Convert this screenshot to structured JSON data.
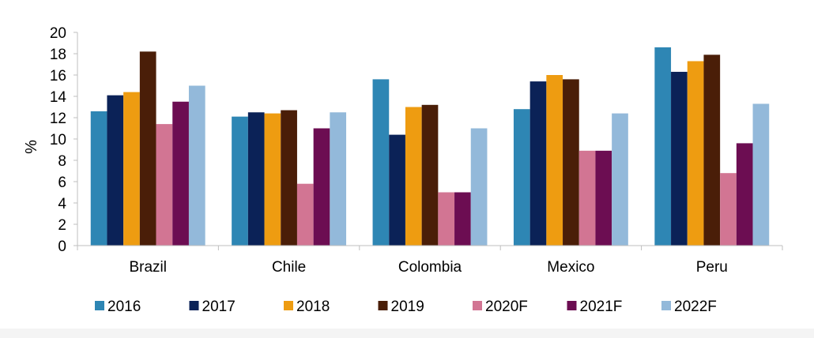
{
  "chart_data": {
    "type": "bar",
    "title": "",
    "xlabel": "",
    "ylabel": "%",
    "ylim": [
      0,
      20
    ],
    "yticks": [
      "0",
      "2",
      "4",
      "6",
      "8",
      "10",
      "12",
      "14",
      "16",
      "18",
      "20"
    ],
    "grid": false,
    "legend_position": "bottom",
    "categories": [
      "Brazil",
      "Chile",
      "Colombia",
      "Mexico",
      "Peru"
    ],
    "series": [
      {
        "name": "2016",
        "color": "#2e86b4",
        "values": [
          12.6,
          12.1,
          15.6,
          12.8,
          18.6
        ]
      },
      {
        "name": "2017",
        "color": "#0b2257",
        "values": [
          14.1,
          12.5,
          10.4,
          15.4,
          16.3
        ]
      },
      {
        "name": "2018",
        "color": "#ee9c11",
        "values": [
          14.4,
          12.4,
          13.0,
          16.0,
          17.3
        ]
      },
      {
        "name": "2019",
        "color": "#4a1e08",
        "values": [
          18.2,
          12.7,
          13.2,
          15.6,
          17.9
        ]
      },
      {
        "name": "2020F",
        "color": "#d27593",
        "values": [
          11.4,
          5.8,
          5.0,
          8.9,
          6.8
        ]
      },
      {
        "name": "2021F",
        "color": "#6c0d52",
        "values": [
          13.5,
          11.0,
          5.0,
          8.9,
          9.6
        ]
      },
      {
        "name": "2022F",
        "color": "#93b9da",
        "values": [
          15.0,
          12.5,
          11.0,
          12.4,
          13.3
        ]
      }
    ]
  }
}
